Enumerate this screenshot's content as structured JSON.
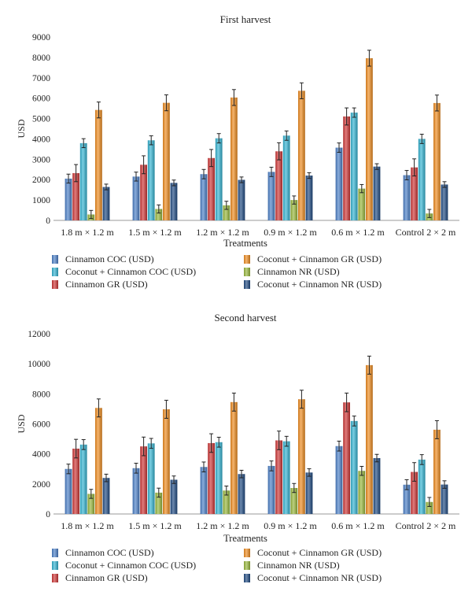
{
  "colors": {
    "cinnamon_coc": "#4a7fc8",
    "coconut_cinnamon_gr": "#f08c1e",
    "coconut_cinnamon_coc": "#33b4d2",
    "cinnamon_nr": "#98b83a",
    "cinnamon_gr": "#d03535",
    "coconut_cinnamon_nr": "#1f4a82"
  },
  "chart_data": [
    {
      "type": "bar",
      "title": "First harvest",
      "xlabel": "Treatments",
      "ylabel": "USD",
      "ylim": [
        0,
        9000
      ],
      "yticks": [
        0,
        1000,
        2000,
        3000,
        4000,
        5000,
        6000,
        7000,
        8000,
        9000
      ],
      "grid": false,
      "legend_position": "bottom",
      "categories": [
        "1.8 m × 1.2 m",
        "1.5 m × 1.2 m",
        "1.2 m × 1.2 m",
        "0.9 m × 1.2 m",
        "0.6 m × 1.2 m",
        "Control 2 × 2 m"
      ],
      "series": [
        {
          "name": "Cinnamon COC (USD)",
          "color_key": "cinnamon_coc",
          "values": [
            2050,
            2150,
            2270,
            2380,
            3570,
            2220
          ],
          "errors": [
            220,
            220,
            230,
            230,
            230,
            230
          ]
        },
        {
          "name": "Cinnamon GR (USD)",
          "color_key": "cinnamon_gr",
          "values": [
            2320,
            2730,
            3060,
            3390,
            5100,
            2600
          ],
          "errors": [
            420,
            440,
            420,
            420,
            420,
            420
          ]
        },
        {
          "name": "Coconut + Cinnamon COC (USD)",
          "color_key": "coconut_cinnamon_coc",
          "values": [
            3790,
            3930,
            4030,
            4160,
            5290,
            4000
          ],
          "errors": [
            220,
            220,
            230,
            230,
            230,
            230
          ]
        },
        {
          "name": "Cinnamon NR (USD)",
          "color_key": "cinnamon_nr",
          "values": [
            290,
            560,
            740,
            1000,
            1560,
            340
          ],
          "errors": [
            200,
            200,
            200,
            200,
            200,
            200
          ]
        },
        {
          "name": "Coconut + Cinnamon GR (USD)",
          "color_key": "coconut_cinnamon_gr",
          "values": [
            5420,
            5770,
            6030,
            6360,
            7960,
            5760
          ],
          "errors": [
            390,
            390,
            390,
            390,
            390,
            390
          ]
        },
        {
          "name": "Coconut + Cinnamon NR (USD)",
          "color_key": "coconut_cinnamon_nr",
          "values": [
            1640,
            1840,
            1990,
            2200,
            2640,
            1760
          ],
          "errors": [
            140,
            140,
            140,
            140,
            140,
            140
          ]
        }
      ]
    },
    {
      "type": "bar",
      "title": "Second harvest",
      "xlabel": "Treatments",
      "ylabel": "USD",
      "ylim": [
        0,
        12000
      ],
      "yticks": [
        0,
        2000,
        4000,
        6000,
        8000,
        10000,
        12000
      ],
      "grid": false,
      "legend_position": "bottom",
      "categories": [
        "1.8 m × 1.2 m",
        "1.5 m × 1.2 m",
        "1.2 m × 1.2 m",
        "0.9 m × 1.2 m",
        "0.6 m × 1.2 m",
        "Control 2 × 2 m"
      ],
      "series": [
        {
          "name": "Cinnamon COC (USD)",
          "color_key": "cinnamon_coc",
          "values": [
            3000,
            3050,
            3130,
            3200,
            4520,
            1950
          ],
          "errors": [
            320,
            330,
            330,
            330,
            330,
            330
          ]
        },
        {
          "name": "Cinnamon GR (USD)",
          "color_key": "cinnamon_gr",
          "values": [
            4350,
            4500,
            4720,
            4900,
            7430,
            2800
          ],
          "errors": [
            620,
            620,
            620,
            620,
            620,
            620
          ]
        },
        {
          "name": "Coconut + Cinnamon COC (USD)",
          "color_key": "coconut_cinnamon_coc",
          "values": [
            4620,
            4700,
            4780,
            4840,
            6190,
            3620
          ],
          "errors": [
            330,
            330,
            330,
            330,
            330,
            330
          ]
        },
        {
          "name": "Cinnamon NR (USD)",
          "color_key": "cinnamon_nr",
          "values": [
            1340,
            1420,
            1560,
            1730,
            2870,
            800
          ],
          "errors": [
            300,
            300,
            300,
            300,
            300,
            300
          ]
        },
        {
          "name": "Coconut + Cinnamon GR (USD)",
          "color_key": "coconut_cinnamon_gr",
          "values": [
            7060,
            6970,
            7450,
            7640,
            9910,
            5610
          ],
          "errors": [
            600,
            600,
            600,
            600,
            600,
            600
          ]
        },
        {
          "name": "Coconut + Cinnamon NR (USD)",
          "color_key": "coconut_cinnamon_nr",
          "values": [
            2400,
            2280,
            2660,
            2760,
            3720,
            1960
          ],
          "errors": [
            250,
            250,
            250,
            250,
            250,
            250
          ]
        }
      ]
    }
  ],
  "legend_order": [
    [
      "Cinnamon COC (USD)",
      "Coconut + Cinnamon GR (USD)"
    ],
    [
      "Coconut + Cinnamon COC (USD)",
      "Cinnamon NR (USD)"
    ],
    [
      "Cinnamon GR (USD)",
      "Coconut + Cinnamon NR (USD)"
    ]
  ]
}
